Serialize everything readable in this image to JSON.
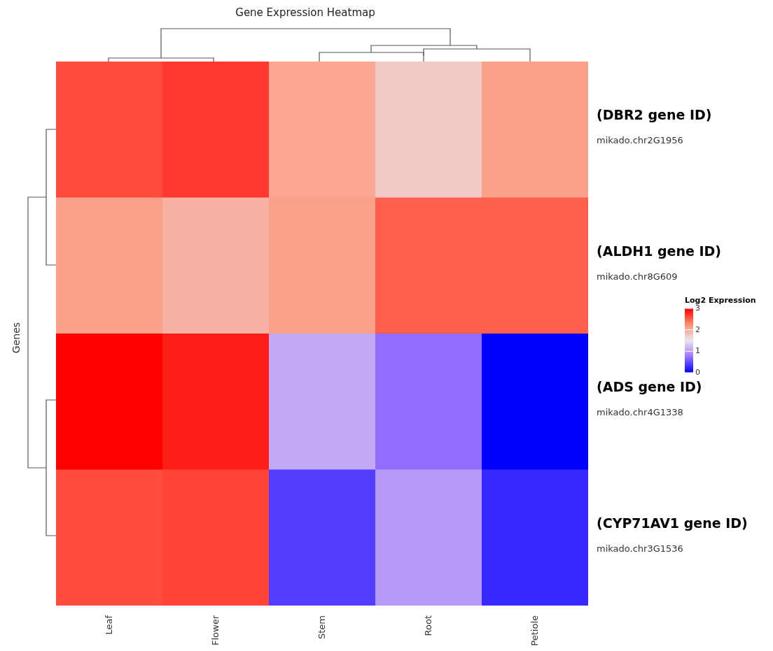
{
  "chart_data": {
    "type": "heatmap",
    "title": "Gene Expression Heatmap",
    "ylabel": "Genes",
    "clabel": "Log2 Expression",
    "categories": [
      "Leaf",
      "Flower",
      "Stem",
      "Root",
      "Petiole"
    ],
    "y_categories": [
      "mikado.chr2G1956",
      "mikado.chr8G609",
      "mikado.chr4G1338",
      "mikado.chr3G1536"
    ],
    "annotations": [
      "(DBR2 gene ID)",
      "(ALDH1 gene ID)",
      "(ADS gene ID)",
      "(CYP71AV1 gene ID)"
    ],
    "cells": [
      [
        2.6,
        2.7,
        2.05,
        1.75,
        2.1
      ],
      [
        2.1,
        1.95,
        2.1,
        2.5,
        2.5
      ],
      [
        3.0,
        2.85,
        1.1,
        0.7,
        0
      ],
      [
        2.6,
        2.65,
        0.4,
        1.0,
        0.25
      ]
    ],
    "colors": [
      "#0000ff",
      "#9b74ff",
      "#ece6ec",
      "#ff8f73",
      "#ff0000"
    ],
    "clim": [
      0,
      3
    ],
    "cticks": [
      0,
      1,
      2,
      3
    ]
  }
}
